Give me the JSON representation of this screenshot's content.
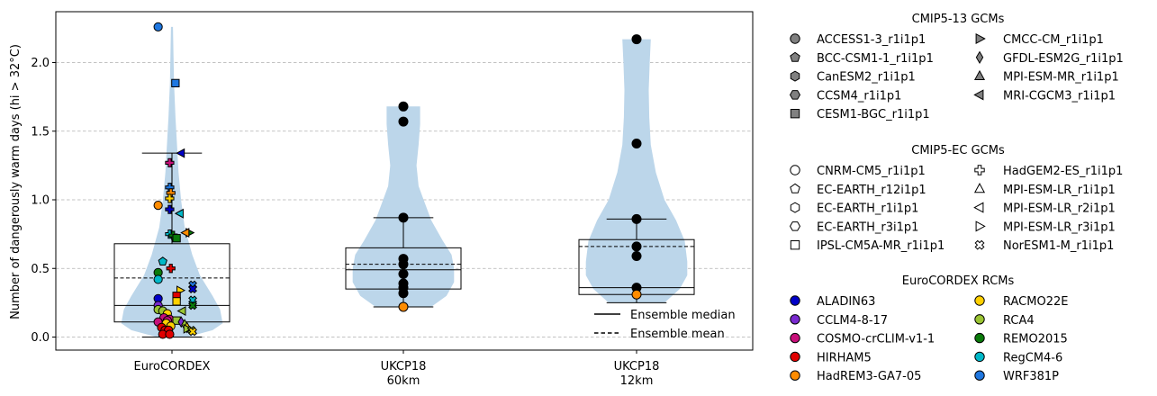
{
  "chart_data": {
    "type": "violin",
    "ylabel": "Number of dangerously warm days (hi > 32°C)",
    "ylim": [
      -0.1,
      2.35
    ],
    "yticks": [
      "0.0",
      "0.5",
      "1.0",
      "1.5",
      "2.0"
    ],
    "ytick_values": [
      0.0,
      0.5,
      1.0,
      1.5,
      2.0
    ],
    "grid": "horizontal dashed",
    "categories": [
      {
        "label_line1": "EuroCORDEX",
        "label_line2": ""
      },
      {
        "label_line1": "UKCP18",
        "label_line2": "60km"
      },
      {
        "label_line1": "UKCP18",
        "label_line2": "12km"
      }
    ],
    "boxes": [
      {
        "q1": 0.11,
        "median": 0.23,
        "q3": 0.68,
        "mean": 0.43,
        "whisker_low": 0.0,
        "whisker_high": 1.34
      },
      {
        "q1": 0.35,
        "median": 0.49,
        "q3": 0.65,
        "mean": 0.53,
        "whisker_low": 0.22,
        "whisker_high": 0.87
      },
      {
        "q1": 0.31,
        "median": 0.36,
        "q3": 0.71,
        "mean": 0.66,
        "whisker_low": 0.25,
        "whisker_high": 0.86
      }
    ],
    "violins": [
      {
        "min": 0.0,
        "max": 2.26,
        "profile": [
          [
            0.0,
            0.3
          ],
          [
            0.05,
            0.8
          ],
          [
            0.1,
            1.0
          ],
          [
            0.2,
            0.95
          ],
          [
            0.3,
            0.8
          ],
          [
            0.45,
            0.55
          ],
          [
            0.6,
            0.4
          ],
          [
            0.8,
            0.25
          ],
          [
            1.0,
            0.18
          ],
          [
            1.2,
            0.13
          ],
          [
            1.4,
            0.1
          ],
          [
            1.6,
            0.07
          ],
          [
            1.85,
            0.04
          ],
          [
            2.05,
            0.03
          ],
          [
            2.26,
            0.02
          ]
        ]
      },
      {
        "min": 0.22,
        "max": 1.68,
        "profile": [
          [
            0.22,
            0.55
          ],
          [
            0.3,
            0.85
          ],
          [
            0.4,
            1.0
          ],
          [
            0.5,
            1.0
          ],
          [
            0.6,
            0.95
          ],
          [
            0.7,
            0.78
          ],
          [
            0.85,
            0.55
          ],
          [
            1.0,
            0.4
          ],
          [
            1.1,
            0.3
          ],
          [
            1.25,
            0.26
          ],
          [
            1.4,
            0.3
          ],
          [
            1.55,
            0.33
          ],
          [
            1.68,
            0.33
          ]
        ]
      },
      {
        "min": 0.25,
        "max": 2.17,
        "profile": [
          [
            0.25,
            0.55
          ],
          [
            0.35,
            0.85
          ],
          [
            0.45,
            1.0
          ],
          [
            0.55,
            1.0
          ],
          [
            0.7,
            0.95
          ],
          [
            0.85,
            0.78
          ],
          [
            1.0,
            0.55
          ],
          [
            1.2,
            0.38
          ],
          [
            1.4,
            0.28
          ],
          [
            1.6,
            0.25
          ],
          [
            1.8,
            0.24
          ],
          [
            2.0,
            0.26
          ],
          [
            2.17,
            0.28
          ]
        ]
      }
    ],
    "points": [
      [
        {
          "v": 2.26,
          "dx": -0.12,
          "m": "o",
          "c": "#1f77e0"
        },
        {
          "v": 1.85,
          "dx": 0.03,
          "m": "s",
          "c": "#1f77e0"
        },
        {
          "v": 1.34,
          "dx": 0.08,
          "m": "<",
          "c": "#0000c8"
        },
        {
          "v": 1.27,
          "dx": -0.02,
          "m": "+",
          "c": "#c8107a"
        },
        {
          "v": 1.09,
          "dx": -0.02,
          "m": "+",
          "c": "#1f77e0"
        },
        {
          "v": 1.05,
          "dx": -0.01,
          "m": "+",
          "c": "#ff8c00"
        },
        {
          "v": 1.01,
          "dx": -0.02,
          "m": "+",
          "c": "#ffd000"
        },
        {
          "v": 0.96,
          "dx": -0.12,
          "m": "o",
          "c": "#ff8c00"
        },
        {
          "v": 0.93,
          "dx": -0.02,
          "m": "+",
          "c": "#0000c8"
        },
        {
          "v": 0.9,
          "dx": 0.07,
          "m": "<",
          "c": "#00b8c8"
        },
        {
          "v": 0.76,
          "dx": 0.15,
          "m": ">",
          "c": "#0a7a0a"
        },
        {
          "v": 0.76,
          "dx": 0.12,
          "m": "<",
          "c": "#ff8c00"
        },
        {
          "v": 0.75,
          "dx": -0.02,
          "m": "+",
          "c": "#00b8c8"
        },
        {
          "v": 0.74,
          "dx": 0.01,
          "m": "+",
          "c": "#0a7a0a"
        },
        {
          "v": 0.72,
          "dx": 0.04,
          "m": "s",
          "c": "#0a7a0a"
        },
        {
          "v": 0.55,
          "dx": -0.08,
          "m": "p",
          "c": "#00b8c8"
        },
        {
          "v": 0.5,
          "dx": -0.01,
          "m": "+",
          "c": "#e00000"
        },
        {
          "v": 0.47,
          "dx": -0.12,
          "m": "o",
          "c": "#0a7a0a"
        },
        {
          "v": 0.42,
          "dx": -0.12,
          "m": "o",
          "c": "#00b8c8"
        },
        {
          "v": 0.38,
          "dx": 0.18,
          "m": "x",
          "c": "#1f77e0"
        },
        {
          "v": 0.35,
          "dx": 0.18,
          "m": "x",
          "c": "#0000c8"
        },
        {
          "v": 0.34,
          "dx": 0.07,
          "m": ">",
          "c": "#ffd000"
        },
        {
          "v": 0.3,
          "dx": 0.04,
          "m": "s",
          "c": "#e00000"
        },
        {
          "v": 0.28,
          "dx": -0.12,
          "m": "o",
          "c": "#0000c8"
        },
        {
          "v": 0.27,
          "dx": 0.18,
          "m": "x",
          "c": "#00b8c8"
        },
        {
          "v": 0.26,
          "dx": 0.04,
          "m": "s",
          "c": "#ffd000"
        },
        {
          "v": 0.23,
          "dx": 0.18,
          "m": "x",
          "c": "#0a7a0a"
        },
        {
          "v": 0.23,
          "dx": -0.12,
          "m": "o",
          "c": "#7a2ad0"
        },
        {
          "v": 0.2,
          "dx": -0.12,
          "m": "o",
          "c": "#9ac432"
        },
        {
          "v": 0.19,
          "dx": -0.08,
          "m": "o",
          "c": "#9ac432"
        },
        {
          "v": 0.19,
          "dx": 0.09,
          "m": "<",
          "c": "#9ac432"
        },
        {
          "v": 0.17,
          "dx": -0.04,
          "m": "o",
          "c": "#ffd000"
        },
        {
          "v": 0.14,
          "dx": -0.07,
          "m": "o",
          "c": "#c8107a"
        },
        {
          "v": 0.13,
          "dx": -0.02,
          "m": "o",
          "c": "#c8107a"
        },
        {
          "v": 0.12,
          "dx": 0.04,
          "m": "s",
          "c": "#9ac432"
        },
        {
          "v": 0.12,
          "dx": -0.04,
          "m": "o",
          "c": "#c8107a"
        },
        {
          "v": 0.11,
          "dx": -0.12,
          "m": "o",
          "c": "#c8107a"
        },
        {
          "v": 0.11,
          "dx": 0.08,
          "m": "d",
          "c": "#7a2ad0"
        },
        {
          "v": 0.1,
          "dx": -0.05,
          "m": "o",
          "c": "#ffd000"
        },
        {
          "v": 0.09,
          "dx": 0.11,
          "m": "d",
          "c": "#9ac432"
        },
        {
          "v": 0.08,
          "dx": -0.01,
          "m": "o",
          "c": "#ffd000"
        },
        {
          "v": 0.07,
          "dx": -0.09,
          "m": "o",
          "c": "#e00000"
        },
        {
          "v": 0.07,
          "dx": 0.13,
          "m": "d",
          "c": "#ffd000"
        },
        {
          "v": 0.06,
          "dx": 0.13,
          "m": ">",
          "c": "#9ac432"
        },
        {
          "v": 0.05,
          "dx": -0.06,
          "m": "o",
          "c": "#e00000"
        },
        {
          "v": 0.05,
          "dx": -0.03,
          "m": "o",
          "c": "#e00000"
        },
        {
          "v": 0.05,
          "dx": 0.17,
          "m": "x",
          "c": "#9ac432"
        },
        {
          "v": 0.04,
          "dx": 0.18,
          "m": "x",
          "c": "#ffd000"
        },
        {
          "v": 0.02,
          "dx": -0.08,
          "m": "o",
          "c": "#e00000"
        },
        {
          "v": 0.02,
          "dx": -0.02,
          "m": "o",
          "c": "#e00000"
        }
      ],
      [
        {
          "v": 1.68,
          "dx": 0.0,
          "m": "o",
          "c": "#000000"
        },
        {
          "v": 1.57,
          "dx": 0.0,
          "m": "o",
          "c": "#000000"
        },
        {
          "v": 0.87,
          "dx": 0.0,
          "m": "o",
          "c": "#000000"
        },
        {
          "v": 0.57,
          "dx": 0.0,
          "m": "o",
          "c": "#000000"
        },
        {
          "v": 0.53,
          "dx": 0.0,
          "m": "o",
          "c": "#000000"
        },
        {
          "v": 0.46,
          "dx": 0.0,
          "m": "o",
          "c": "#000000"
        },
        {
          "v": 0.39,
          "dx": 0.0,
          "m": "o",
          "c": "#000000"
        },
        {
          "v": 0.36,
          "dx": 0.0,
          "m": "o",
          "c": "#000000"
        },
        {
          "v": 0.32,
          "dx": 0.0,
          "m": "o",
          "c": "#000000"
        },
        {
          "v": 0.22,
          "dx": 0.0,
          "m": "o",
          "c": "#ff8c00"
        }
      ],
      [
        {
          "v": 2.17,
          "dx": 0.0,
          "m": "o",
          "c": "#000000"
        },
        {
          "v": 1.41,
          "dx": 0.0,
          "m": "o",
          "c": "#000000"
        },
        {
          "v": 0.86,
          "dx": 0.0,
          "m": "o",
          "c": "#000000"
        },
        {
          "v": 0.66,
          "dx": 0.0,
          "m": "o",
          "c": "#000000"
        },
        {
          "v": 0.59,
          "dx": 0.0,
          "m": "o",
          "c": "#000000"
        },
        {
          "v": 0.36,
          "dx": 0.0,
          "m": "o",
          "c": "#000000"
        },
        {
          "v": 0.31,
          "dx": 0.0,
          "m": "o",
          "c": "#ff8c00"
        }
      ]
    ],
    "inner_legend": [
      {
        "style": "solid",
        "label": "Ensemble median"
      },
      {
        "style": "dashed",
        "label": "Ensemble mean"
      }
    ],
    "legend_groups": [
      {
        "title": "CMIP5-13 GCMs",
        "marker_fill": "#808080",
        "col1": [
          {
            "m": "o",
            "label": "ACCESS1-3_r1i1p1"
          },
          {
            "m": "p",
            "label": "BCC-CSM1-1_r1i1p1"
          },
          {
            "m": "h",
            "label": "CanESM2_r1i1p1"
          },
          {
            "m": "H",
            "label": "CCSM4_r1i1p1"
          },
          {
            "m": "s",
            "label": "CESM1-BGC_r1i1p1"
          }
        ],
        "col2": [
          {
            "m": ">",
            "label": "CMCC-CM_r1i1p1"
          },
          {
            "m": "d",
            "label": "GFDL-ESM2G_r1i1p1"
          },
          {
            "m": "^",
            "label": "MPI-ESM-MR_r1i1p1"
          },
          {
            "m": "<",
            "label": "MRI-CGCM3_r1i1p1"
          }
        ]
      },
      {
        "title": "CMIP5-EC GCMs",
        "marker_fill": "#ffffff",
        "col1": [
          {
            "m": "o",
            "label": "CNRM-CM5_r1i1p1"
          },
          {
            "m": "p",
            "label": "EC-EARTH_r12i1p1"
          },
          {
            "m": "h",
            "label": "EC-EARTH_r1i1p1"
          },
          {
            "m": "H",
            "label": "EC-EARTH_r3i1p1"
          },
          {
            "m": "s",
            "label": "IPSL-CM5A-MR_r1i1p1"
          }
        ],
        "col2": [
          {
            "m": "+",
            "label": "HadGEM2-ES_r1i1p1"
          },
          {
            "m": "^",
            "label": "MPI-ESM-LR_r1i1p1"
          },
          {
            "m": "<",
            "label": "MPI-ESM-LR_r2i1p1"
          },
          {
            "m": ">",
            "label": "MPI-ESM-LR_r3i1p1"
          },
          {
            "m": "x",
            "label": "NorESM1-M_r1i1p1"
          }
        ]
      },
      {
        "title": "EuroCORDEX RCMs",
        "col1": [
          {
            "m": "o",
            "c": "#0000c8",
            "label": "ALADIN63"
          },
          {
            "m": "o",
            "c": "#7a2ad0",
            "label": "CCLM4-8-17"
          },
          {
            "m": "o",
            "c": "#c8107a",
            "label": "COSMO-crCLIM-v1-1"
          },
          {
            "m": "o",
            "c": "#e00000",
            "label": "HIRHAM5"
          },
          {
            "m": "o",
            "c": "#ff8c00",
            "label": "HadREM3-GA7-05"
          }
        ],
        "col2": [
          {
            "m": "o",
            "c": "#ffd000",
            "label": "RACMO22E"
          },
          {
            "m": "o",
            "c": "#9ac432",
            "label": "RCA4"
          },
          {
            "m": "o",
            "c": "#0a7a0a",
            "label": "REMO2015"
          },
          {
            "m": "o",
            "c": "#00b8c8",
            "label": "RegCM4-6"
          },
          {
            "m": "o",
            "c": "#1f77e0",
            "label": "WRF381P"
          }
        ]
      }
    ],
    "colors": {
      "violin_fill": "#bcd6ea",
      "grid": "#b0b0b0"
    }
  }
}
